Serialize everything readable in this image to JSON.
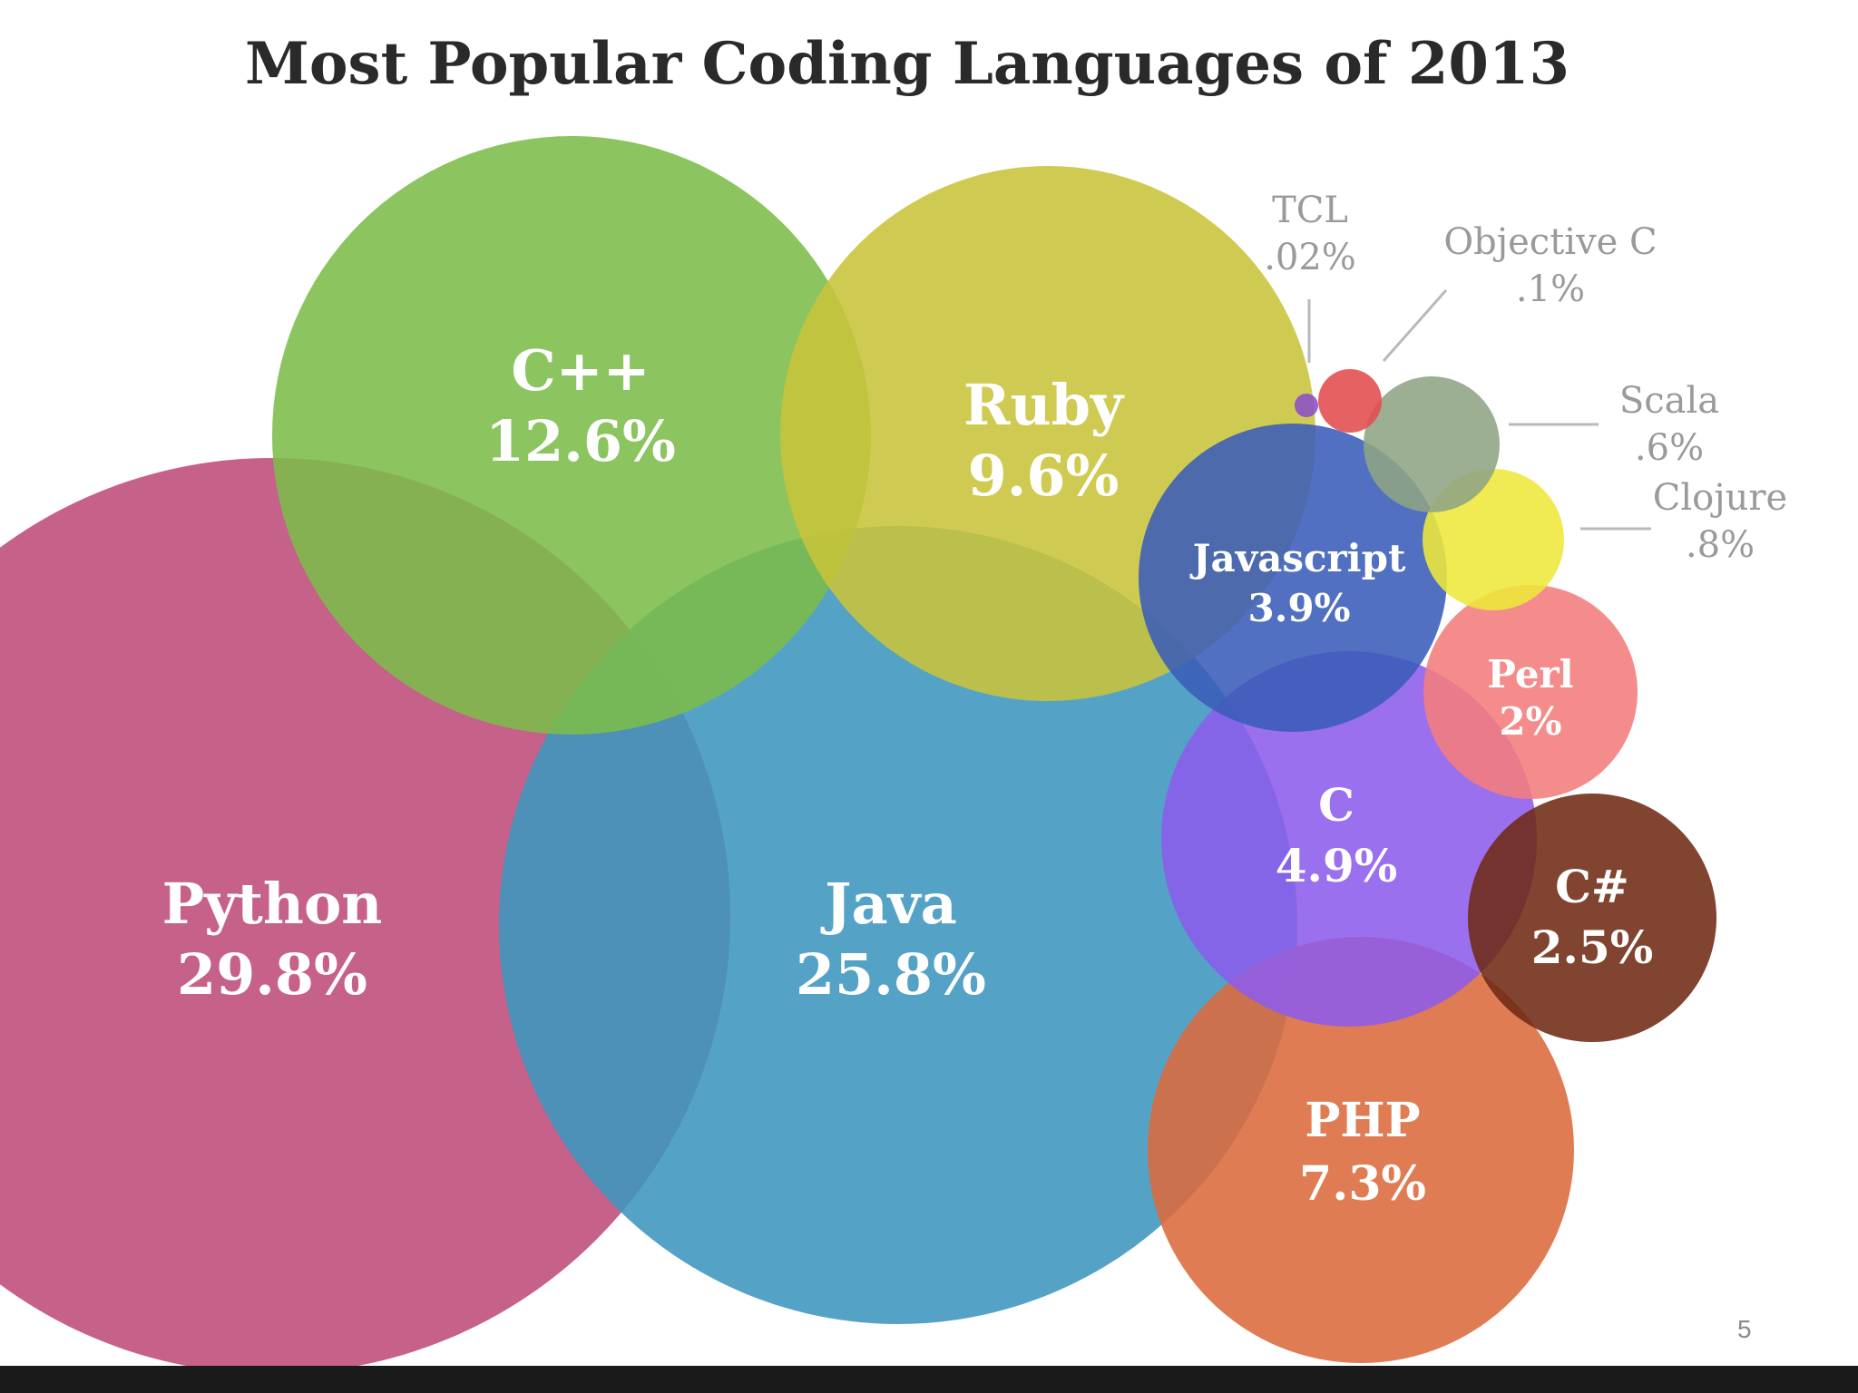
{
  "chart_data": {
    "type": "bubble",
    "title": "Most Popular Coding Languages of 2013",
    "series": [
      {
        "name": "Python",
        "value_label": "29.8%",
        "value": 29.8,
        "color": "#be4b7a"
      },
      {
        "name": "Java",
        "value_label": "25.8%",
        "value": 25.8,
        "color": "#3c96be"
      },
      {
        "name": "C++",
        "value_label": "12.6%",
        "value": 12.6,
        "color": "#7cbc4a"
      },
      {
        "name": "Ruby",
        "value_label": "9.6%",
        "value": 9.6,
        "color": "#c8c43a"
      },
      {
        "name": "PHP",
        "value_label": "7.3%",
        "value": 7.3,
        "color": "#dc6a3c"
      },
      {
        "name": "C",
        "value_label": "4.9%",
        "value": 4.9,
        "color": "#8c5cec"
      },
      {
        "name": "Javascript",
        "value_label": "3.9%",
        "value": 3.9,
        "color": "#3a5cb8"
      },
      {
        "name": "C#",
        "value_label": "2.5%",
        "value": 2.5,
        "color": "#6e2a14"
      },
      {
        "name": "Perl",
        "value_label": "2%",
        "value": 2,
        "color": "#f47c7c"
      },
      {
        "name": "Clojure",
        "value_label": ".8%",
        "value": 0.8,
        "color": "#eee83a"
      },
      {
        "name": "Scala",
        "value_label": ".6%",
        "value": 0.6,
        "color": "#8ea484"
      },
      {
        "name": "Objective C",
        "value_label": ".1%",
        "value": 0.1,
        "color": "#e24c4c"
      },
      {
        "name": "TCL",
        "value_label": ".02%",
        "value": 0.02,
        "color": "#8a4ec8"
      }
    ]
  },
  "footer": {
    "page_number": "5"
  }
}
